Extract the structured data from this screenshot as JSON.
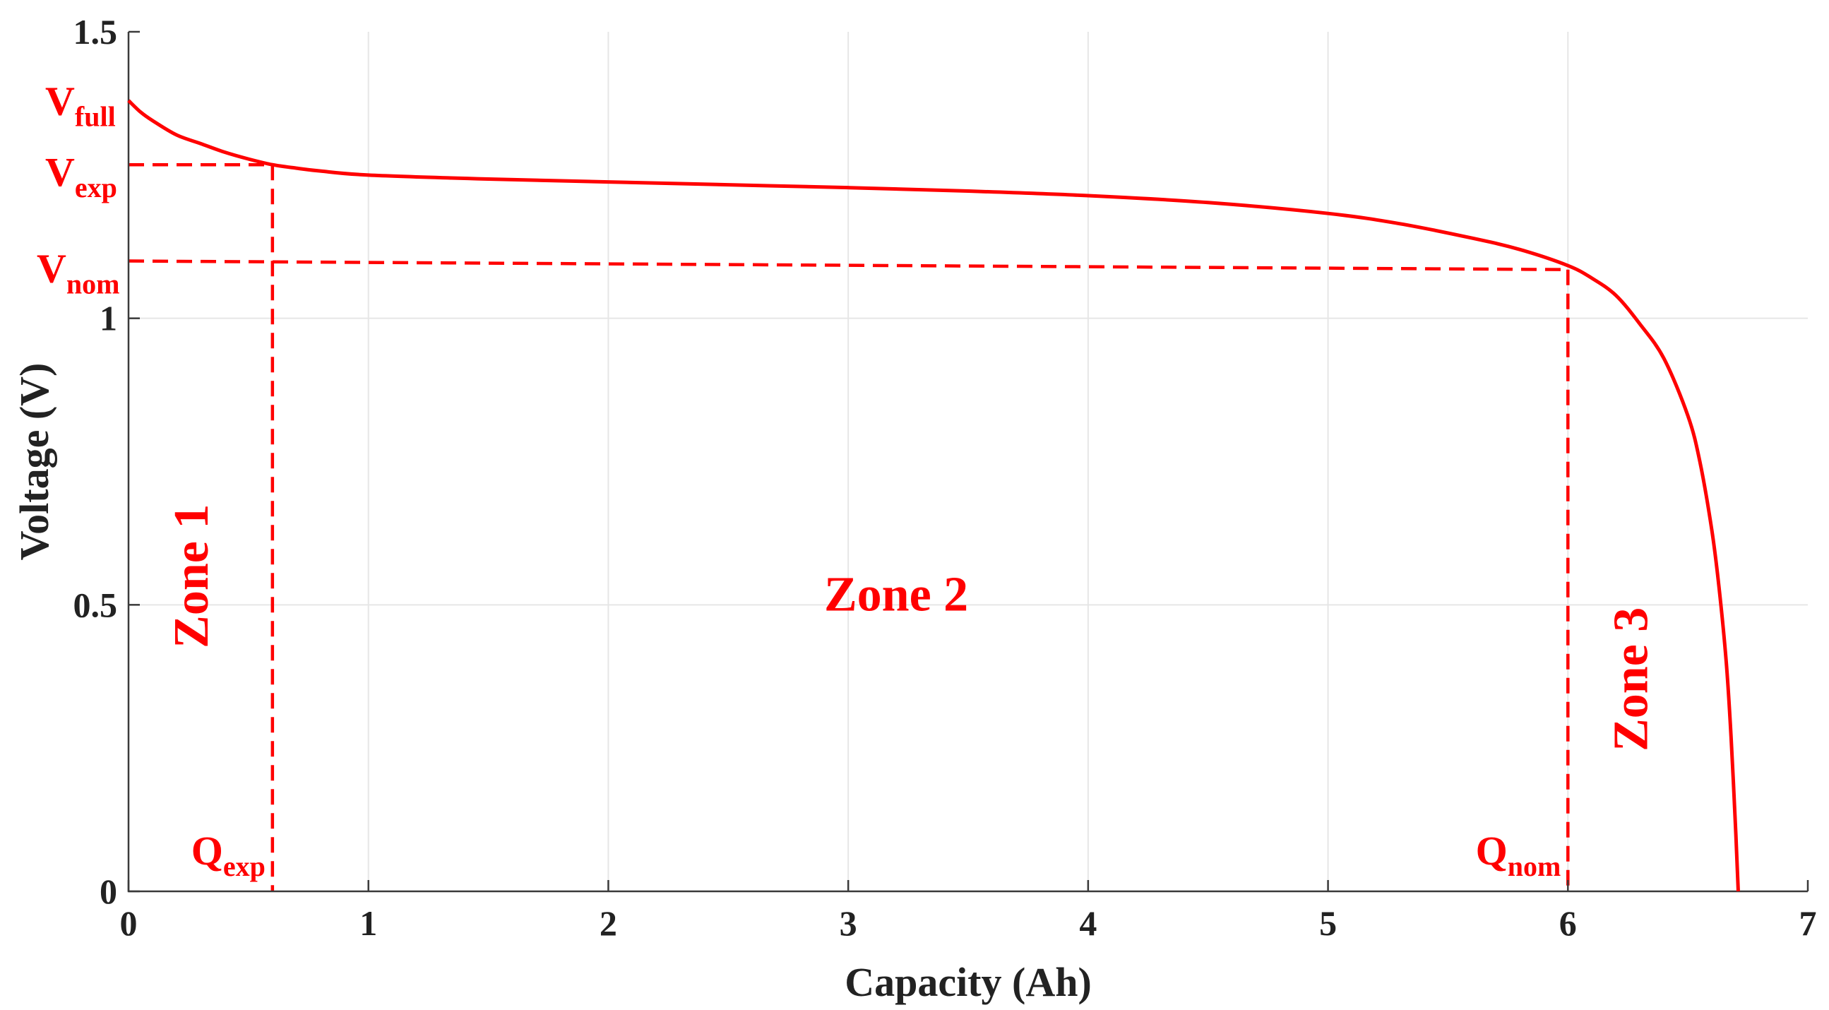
{
  "colors": {
    "curve": "#ff0000",
    "annotation": "#ff0000",
    "axis": "#3a3a3a",
    "grid": "#e6e6e6",
    "text": "#222222"
  },
  "chart_data": {
    "type": "line",
    "title": "",
    "xlabel": "Capacity (Ah)",
    "ylabel": "Voltage (V)",
    "xlim": [
      0,
      7
    ],
    "ylim": [
      0,
      1.5
    ],
    "x_ticks": [
      0,
      1,
      2,
      3,
      4,
      5,
      6,
      7
    ],
    "y_ticks": [
      0,
      0.5,
      1,
      1.5
    ],
    "x_tick_labels": [
      "0",
      "1",
      "2",
      "3",
      "4",
      "5",
      "6",
      "7"
    ],
    "y_tick_labels": [
      "0",
      "0.5",
      "1",
      "1.5"
    ],
    "grid": true,
    "series": [
      {
        "x": [
          0,
          0.05,
          0.1,
          0.2,
          0.3,
          0.4,
          0.5,
          0.6,
          0.7,
          0.8,
          1.0,
          1.5,
          2.0,
          2.5,
          3.0,
          3.5,
          4.0,
          4.5,
          5.0,
          5.3,
          5.6,
          5.8,
          6.0,
          6.1,
          6.2,
          6.3,
          6.4,
          6.5,
          6.55,
          6.6,
          6.63,
          6.66,
          6.68,
          6.7,
          6.71
        ],
        "y": [
          1.38,
          1.36,
          1.345,
          1.32,
          1.305,
          1.29,
          1.278,
          1.268,
          1.262,
          1.257,
          1.25,
          1.243,
          1.238,
          1.233,
          1.228,
          1.222,
          1.214,
          1.202,
          1.183,
          1.165,
          1.14,
          1.12,
          1.092,
          1.07,
          1.04,
          0.99,
          0.93,
          0.83,
          0.75,
          0.63,
          0.53,
          0.4,
          0.27,
          0.1,
          0.0
        ]
      }
    ],
    "markers": {
      "v_full": {
        "label": "V",
        "sub": "full",
        "y": 1.38
      },
      "v_exp": {
        "label": "V",
        "sub": "exp",
        "y": 1.268
      },
      "v_nom": {
        "label": "V",
        "sub": "nom",
        "y": 1.1
      },
      "q_exp": {
        "label": "Q",
        "sub": "exp",
        "x": 0.6
      },
      "q_nom": {
        "label": "Q",
        "sub": "nom",
        "x": 6.0
      }
    },
    "guide_lines": [
      {
        "from": [
          0,
          1.268
        ],
        "to": [
          0.6,
          1.268
        ]
      },
      {
        "from": [
          0.6,
          1.268
        ],
        "to": [
          0.6,
          0
        ]
      },
      {
        "from": [
          0,
          1.1
        ],
        "to": [
          6.0,
          1.085
        ]
      },
      {
        "from": [
          6.0,
          1.085
        ],
        "to": [
          6.0,
          0
        ]
      }
    ],
    "annotations": [
      {
        "text": "Zone 1",
        "x": 0.33,
        "y": 0.55,
        "rotated": true
      },
      {
        "text": "Zone 2",
        "x": 3.2,
        "y": 0.49,
        "rotated": false
      },
      {
        "text": "Zone 3",
        "x": 6.33,
        "y": 0.37,
        "rotated": true
      }
    ]
  }
}
